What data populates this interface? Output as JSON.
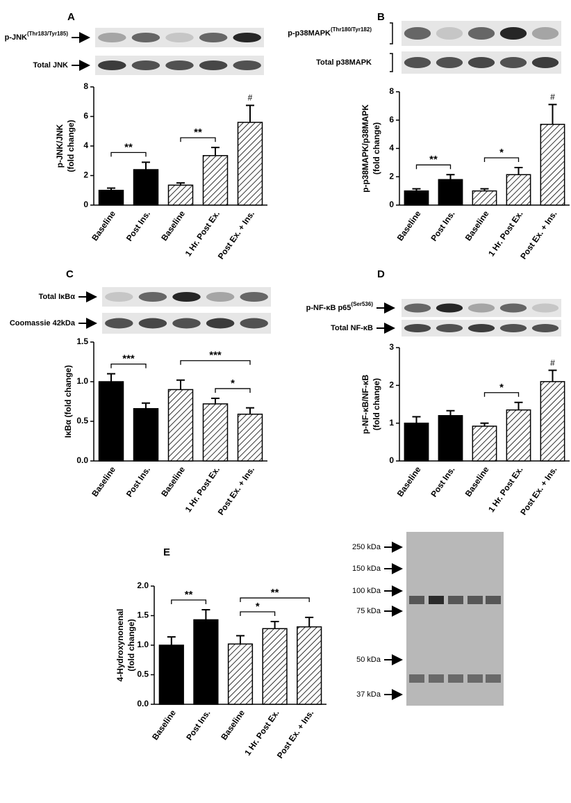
{
  "chart_data": [
    {
      "type": "bar",
      "title": "A",
      "ylabel": [
        "p-JNK/JNK",
        "(fold change)"
      ],
      "categories": [
        "Baseline",
        "Post Ins.",
        "Baseline",
        "1 Hr. Post Ex.",
        "Post Ex. + Ins."
      ],
      "values": [
        1.0,
        2.4,
        1.35,
        3.35,
        5.6
      ],
      "errors": [
        0.15,
        0.5,
        0.15,
        0.55,
        1.15
      ],
      "fills": [
        "solid",
        "solid",
        "hatched",
        "hatched",
        "hatched"
      ],
      "color": "#000000",
      "ylim": [
        0,
        8
      ],
      "yticks": [
        0,
        2,
        4,
        6,
        8
      ],
      "annotations": [
        {
          "bars": [
            0,
            1
          ],
          "label": "**"
        },
        {
          "bars": [
            2,
            3
          ],
          "label": "**"
        },
        {
          "bars": [
            4
          ],
          "label": "#"
        }
      ]
    },
    {
      "type": "bar",
      "title": "B",
      "ylabel": [
        "p-p38MAPK/p38MAPK",
        "(fold change)"
      ],
      "categories": [
        "Baseline",
        "Post Ins.",
        "Baseline",
        "1 Hr. Post Ex.",
        "Post Ex. + Ins."
      ],
      "values": [
        1.0,
        1.8,
        1.0,
        2.15,
        5.7
      ],
      "errors": [
        0.15,
        0.35,
        0.15,
        0.5,
        1.4
      ],
      "fills": [
        "solid",
        "solid",
        "hatched",
        "hatched",
        "hatched"
      ],
      "color": "#000000",
      "ylim": [
        0,
        8
      ],
      "yticks": [
        0,
        2,
        4,
        6,
        8
      ],
      "annotations": [
        {
          "bars": [
            0,
            1
          ],
          "label": "**"
        },
        {
          "bars": [
            2,
            3
          ],
          "label": "*"
        },
        {
          "bars": [
            4
          ],
          "label": "#"
        }
      ]
    },
    {
      "type": "bar",
      "title": "C",
      "ylabel": [
        "IκBα (fold change)"
      ],
      "categories": [
        "Baseline",
        "Post Ins.",
        "Baseline",
        "1 Hr. Post Ex.",
        "Post Ex. + Ins."
      ],
      "values": [
        1.0,
        0.66,
        0.9,
        0.72,
        0.59
      ],
      "errors": [
        0.1,
        0.07,
        0.12,
        0.07,
        0.08
      ],
      "fills": [
        "solid",
        "solid",
        "hatched",
        "hatched",
        "hatched"
      ],
      "color": "#000000",
      "ylim": [
        0,
        1.5
      ],
      "yticks": [
        {
          "value": 0,
          "label": "0.0"
        },
        0.5,
        {
          "value": 1,
          "label": "1.0"
        },
        1.5
      ],
      "annotations": [
        {
          "bars": [
            0,
            1
          ],
          "label": "***"
        },
        {
          "bars": [
            2,
            4
          ],
          "label": "***"
        },
        {
          "bars": [
            3,
            4
          ],
          "label": "*"
        }
      ]
    },
    {
      "type": "bar",
      "title": "D",
      "ylabel": [
        "p-NF-κB/NF-κB",
        "(fold change)"
      ],
      "categories": [
        "Baseline",
        "Post Ins.",
        "Baseline",
        "1 Hr. Post Ex.",
        "Post Ex. + Ins."
      ],
      "values": [
        1.0,
        1.2,
        0.92,
        1.35,
        2.1
      ],
      "errors": [
        0.17,
        0.13,
        0.08,
        0.2,
        0.3
      ],
      "fills": [
        "solid",
        "solid",
        "hatched",
        "hatched",
        "hatched"
      ],
      "color": "#000000",
      "ylim": [
        0,
        3
      ],
      "yticks": [
        0,
        1,
        2,
        3
      ],
      "annotations": [
        {
          "bars": [
            2,
            3
          ],
          "label": "*"
        },
        {
          "bars": [
            4
          ],
          "label": "#"
        }
      ]
    },
    {
      "type": "bar",
      "title": "E",
      "ylabel": [
        "4-Hydroxynonenal",
        "(fold change)"
      ],
      "categories": [
        "Baseline",
        "Post Ins.",
        "Baseline",
        "1 Hr. Post Ex.",
        "Post Ex. + Ins."
      ],
      "values": [
        1.0,
        1.43,
        1.02,
        1.28,
        1.31
      ],
      "errors": [
        0.14,
        0.17,
        0.14,
        0.12,
        0.16
      ],
      "fills": [
        "solid",
        "solid",
        "hatched",
        "hatched",
        "hatched"
      ],
      "color": "#000000",
      "ylim": [
        0,
        2
      ],
      "yticks": [
        {
          "value": 0,
          "label": "0.0"
        },
        0.5,
        {
          "value": 1,
          "label": "1.0"
        },
        1.5,
        {
          "value": 2,
          "label": "2.0"
        }
      ],
      "annotations": [
        {
          "bars": [
            0,
            1
          ],
          "label": "**"
        },
        {
          "bars": [
            2,
            3
          ],
          "label": "*"
        },
        {
          "bars": [
            2,
            4
          ],
          "label": "**"
        }
      ]
    }
  ],
  "blots": [
    {
      "rows": [
        {
          "text": "p-JNK",
          "sup": "(Thr183/Tyr185)"
        },
        {
          "text": "Total JNK"
        }
      ]
    },
    {
      "rows": [
        {
          "text": "p-p38MAPK",
          "sup": "(Thr180/Tyr182)"
        },
        {
          "text": "Total p38MAPK"
        }
      ]
    },
    {
      "rows": [
        {
          "text": "Total IκBα"
        },
        {
          "text": "Coomassie 42kDa"
        }
      ]
    },
    {
      "rows": [
        {
          "text": "p-NF-κB p65",
          "sup": "(Ser536)"
        },
        {
          "text": "Total NF-κB"
        }
      ]
    }
  ],
  "gel_markers": [
    "250 kDa",
    "150 kDa",
    "100 kDa",
    "75 kDa",
    "50 kDa",
    "37 kDa"
  ]
}
